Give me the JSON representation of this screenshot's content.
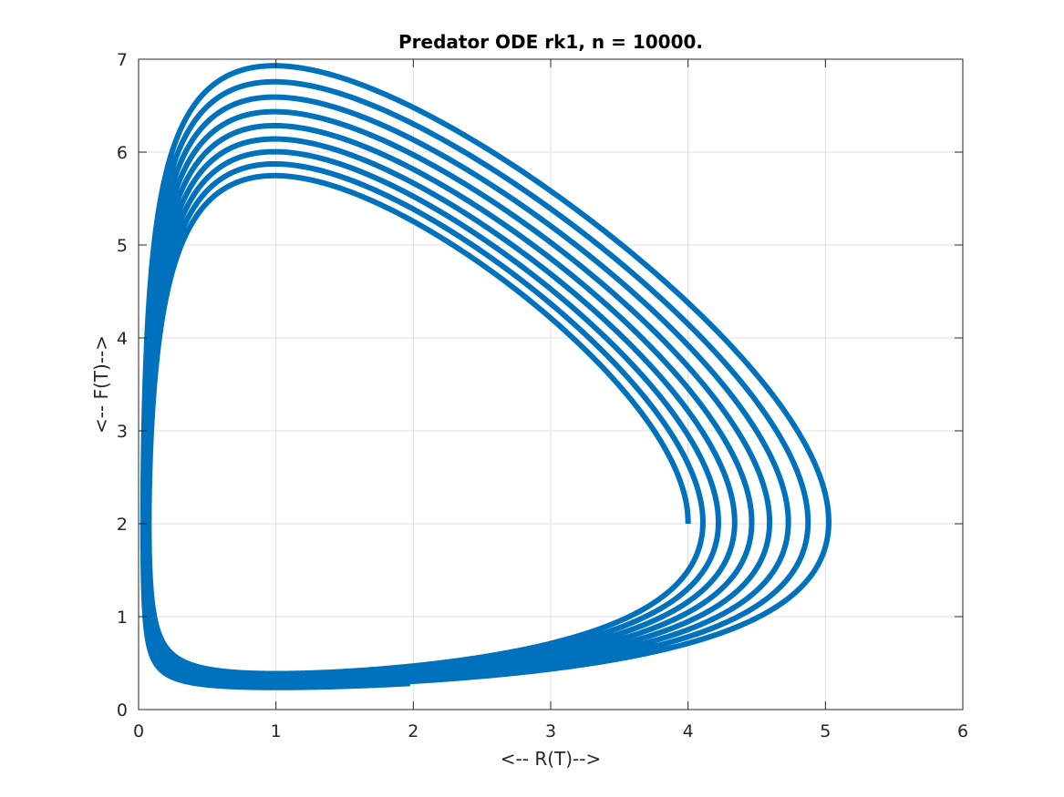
{
  "chart_data": {
    "type": "line",
    "title": "Predator ODE rk1, n = 10000.",
    "xlabel": "<-- R(T)-->",
    "ylabel": "<-- F(T)-->",
    "xlim": [
      0,
      6
    ],
    "ylim": [
      0,
      7
    ],
    "x_ticks": [
      "0",
      "1",
      "2",
      "3",
      "4",
      "5",
      "6"
    ],
    "y_ticks": [
      "0",
      "1",
      "2",
      "3",
      "4",
      "5",
      "6",
      "7"
    ],
    "grid": true,
    "line_color": "#0072BD",
    "series": [
      {
        "values_description_free": true,
        "start": [
          4.0,
          2.0
        ],
        "end": [
          1.97,
          0.27
        ],
        "loops": 9,
        "max_x_per_loop": [
          4.0,
          4.12,
          4.25,
          4.39,
          4.53,
          4.68,
          4.84,
          5.01
        ],
        "max_y_per_loop": [
          5.74,
          5.87,
          6.01,
          6.15,
          6.29,
          6.43,
          6.59,
          6.76,
          6.93
        ],
        "min_y_per_loop": [
          0.39,
          0.37,
          0.35,
          0.33,
          0.31,
          0.29,
          0.27,
          0.26,
          0.25
        ]
      }
    ]
  }
}
